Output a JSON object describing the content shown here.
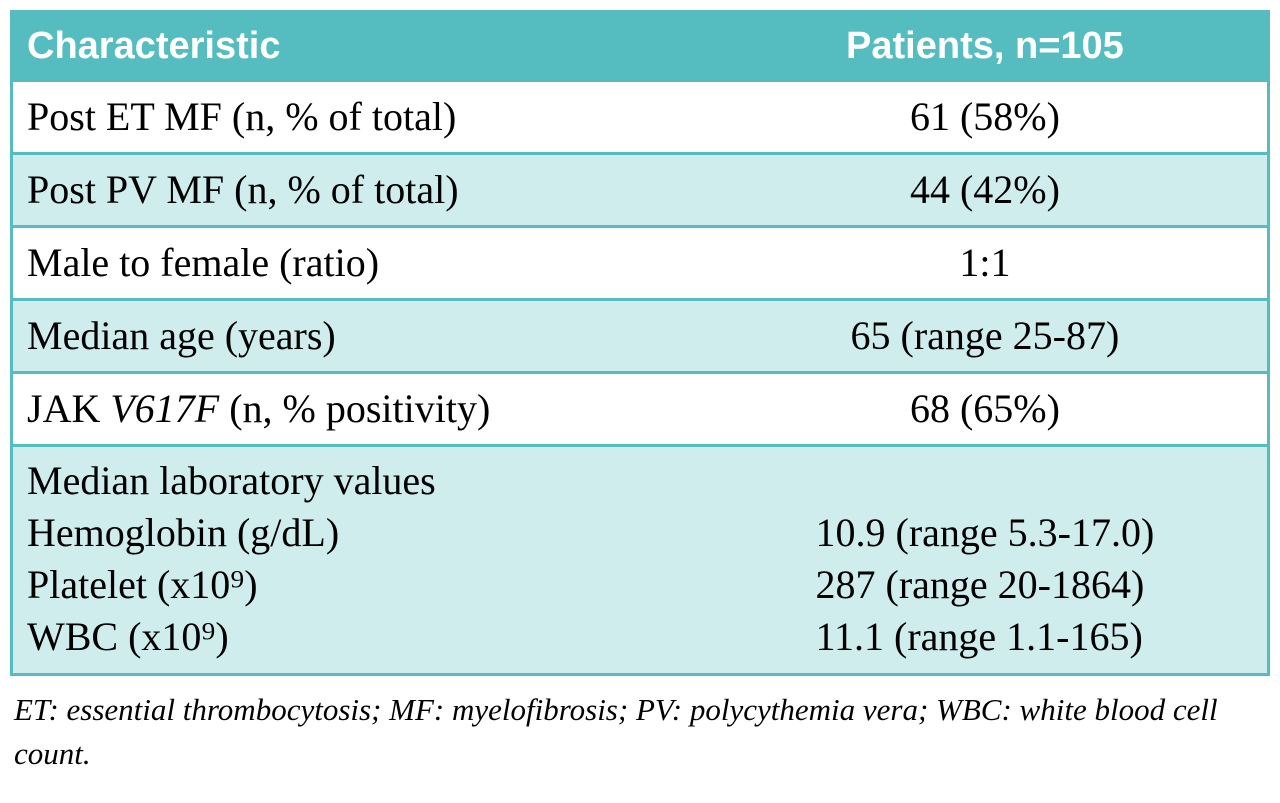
{
  "colors": {
    "header_bg": "#55bcbf",
    "header_text": "#ffffff",
    "shaded_row_bg": "#cfeded",
    "border": "#55bcbf",
    "body_text": "#000000"
  },
  "table": {
    "columns": [
      "Characteristic",
      "Patients, n=105"
    ],
    "rows": [
      {
        "label": "Post ET MF (n, % of total)",
        "value": "61 (58%)"
      },
      {
        "label": "Post PV MF (n, % of total)",
        "value": "44 (42%)"
      },
      {
        "label": "Male to female (ratio)",
        "value": "1:1"
      },
      {
        "label": "Median age (years)",
        "value": "65 (range 25-87)"
      },
      {
        "label_prefix": "JAK ",
        "label_italic": "V617F",
        "label_suffix": " (n, % positivity)",
        "value": "68 (65%)"
      }
    ],
    "lab_group": {
      "title": "Median laboratory values",
      "rows": [
        {
          "label": "Hemoglobin (g/dL)",
          "value": "10.9 (range 5.3-17.0)"
        },
        {
          "label": "Platelet (x10⁹)",
          "value": "287 (range 20-1864)"
        },
        {
          "label": "WBC (x10⁹)",
          "value": "11.1 (range 1.1-165)"
        }
      ]
    },
    "footnote": "ET: essential thrombocytosis;  MF: myelofibrosis; PV: polycythemia vera; WBC: white blood cell count."
  }
}
